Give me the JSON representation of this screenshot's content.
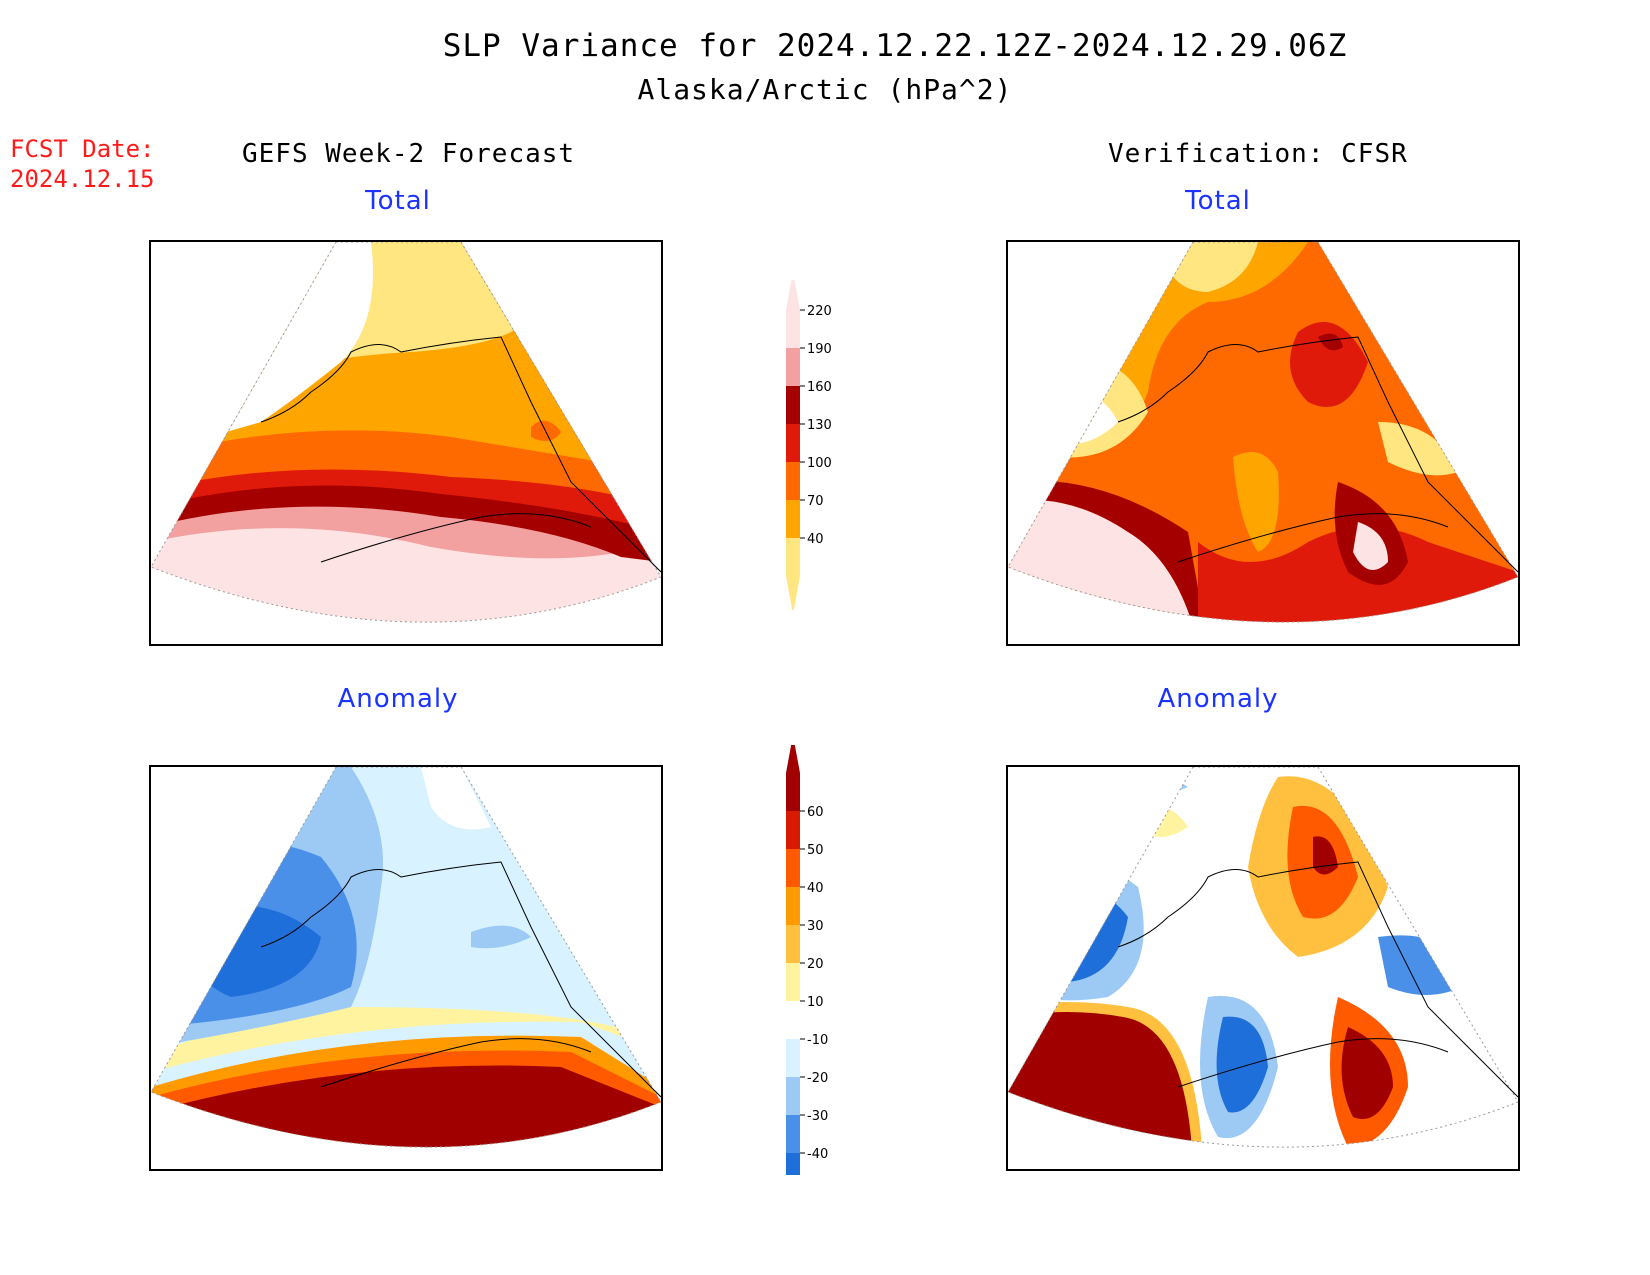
{
  "title": {
    "line1": "SLP Variance for 2024.12.22.12Z-2024.12.29.06Z",
    "line2": "Alaska/Arctic (hPa^2)"
  },
  "fcst_date": {
    "label": "FCST Date:",
    "value": "2024.12.15"
  },
  "columns": {
    "forecast": "GEFS Week-2 Forecast",
    "verification": "Verification: CFSR"
  },
  "panels": {
    "forecast_total": "Total",
    "forecast_anomaly": "Anomaly",
    "verif_total": "Total",
    "verif_anomaly": "Anomaly"
  },
  "chart_data": [
    {
      "type": "heatmap",
      "role": "colorbar-total",
      "levels": [
        40,
        70,
        100,
        130,
        160,
        190,
        220
      ],
      "colors": [
        "#ffe680",
        "#ffa500",
        "#ff6a00",
        "#e01a0a",
        "#a50000",
        "#f2a0a0",
        "#fde3e3"
      ]
    },
    {
      "type": "heatmap",
      "role": "colorbar-anomaly",
      "levels": [
        -40,
        -30,
        -20,
        -10,
        10,
        20,
        30,
        40,
        50,
        60
      ],
      "colors": [
        "#1e6fd9",
        "#4a90e8",
        "#9ccaf5",
        "#d9f2ff",
        "#ffffff",
        "#fff3a0",
        "#ffc040",
        "#ff9a00",
        "#ff5a00",
        "#d81a00",
        "#a00000"
      ]
    }
  ],
  "colors": {
    "title_red": "#ff1a1a",
    "panel_blue": "#1a33ff"
  }
}
